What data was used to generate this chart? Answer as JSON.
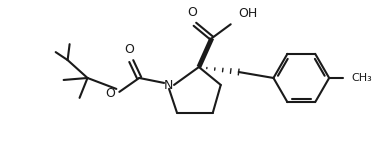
{
  "line_color": "#1a1a1a",
  "background_color": "#ffffff",
  "lw": 1.5,
  "lw_bold": 3.5,
  "lw_hatch": 1.0,
  "figsize": [
    3.76,
    1.46
  ],
  "dpi": 100,
  "N_label": "N",
  "O_label": "O",
  "OH_label": "OH",
  "O_carbonyl": "O",
  "CH3_label": "CH₃",
  "font_size": 8.5
}
